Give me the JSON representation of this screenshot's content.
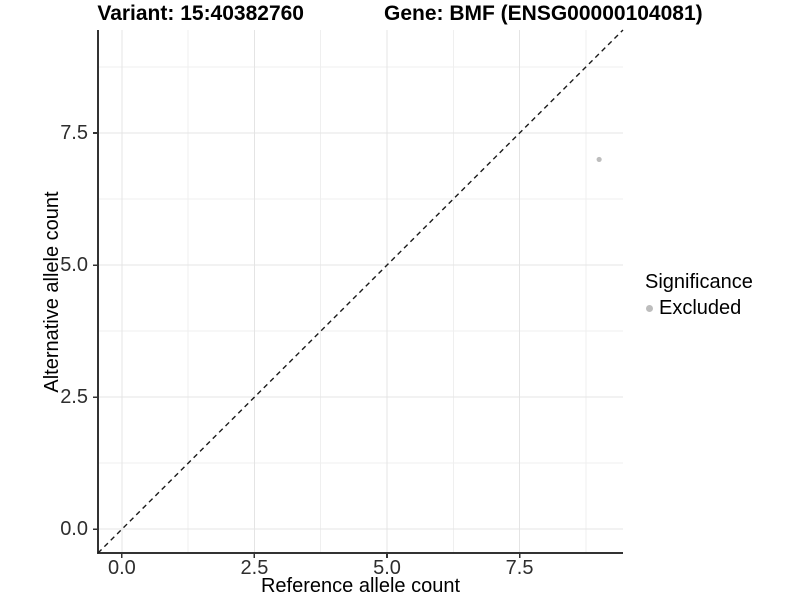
{
  "titles": {
    "variant": "Variant: 15:40382760",
    "gene": "Gene: BMF (ENSG00000104081)"
  },
  "axes": {
    "x_label": "Reference allele count",
    "y_label": "Alternative allele count"
  },
  "legend": {
    "title": "Significance",
    "entries": [
      {
        "label": "Excluded",
        "color": "#bdbdbd"
      }
    ]
  },
  "chart_data": {
    "type": "scatter",
    "title": "Variant: 15:40382760   Gene: BMF (ENSG00000104081)",
    "xlabel": "Reference allele count",
    "ylabel": "Alternative allele count",
    "xlim": [
      -0.45,
      9.45
    ],
    "ylim": [
      -0.45,
      9.45
    ],
    "x_ticks": [
      0.0,
      2.5,
      5.0,
      7.5
    ],
    "x_tick_labels": [
      "0.0",
      "2.5",
      "5.0",
      "7.5"
    ],
    "y_ticks": [
      0.0,
      2.5,
      5.0,
      7.5
    ],
    "y_tick_labels": [
      "0.0",
      "2.5",
      "5.0",
      "7.5"
    ],
    "x_minor_ticks": [
      1.25,
      3.75,
      6.25,
      8.75
    ],
    "y_minor_ticks": [
      1.25,
      3.75,
      6.25,
      8.75
    ],
    "grid": {
      "show": true,
      "major_color": "#e4e4e4",
      "minor_color": "#efefef"
    },
    "axis_line_color": "#333333",
    "reference_line": {
      "type": "identity",
      "from": [
        -0.45,
        -0.45
      ],
      "to": [
        9.45,
        9.45
      ],
      "style": "dashed",
      "color": "#1a1a1a"
    },
    "series": [
      {
        "name": "Excluded",
        "color": "#bdbdbd",
        "points": [
          {
            "x": 9,
            "y": 7
          }
        ]
      }
    ],
    "legend": {
      "title": "Significance",
      "position": "right",
      "entries": [
        "Excluded"
      ]
    }
  }
}
